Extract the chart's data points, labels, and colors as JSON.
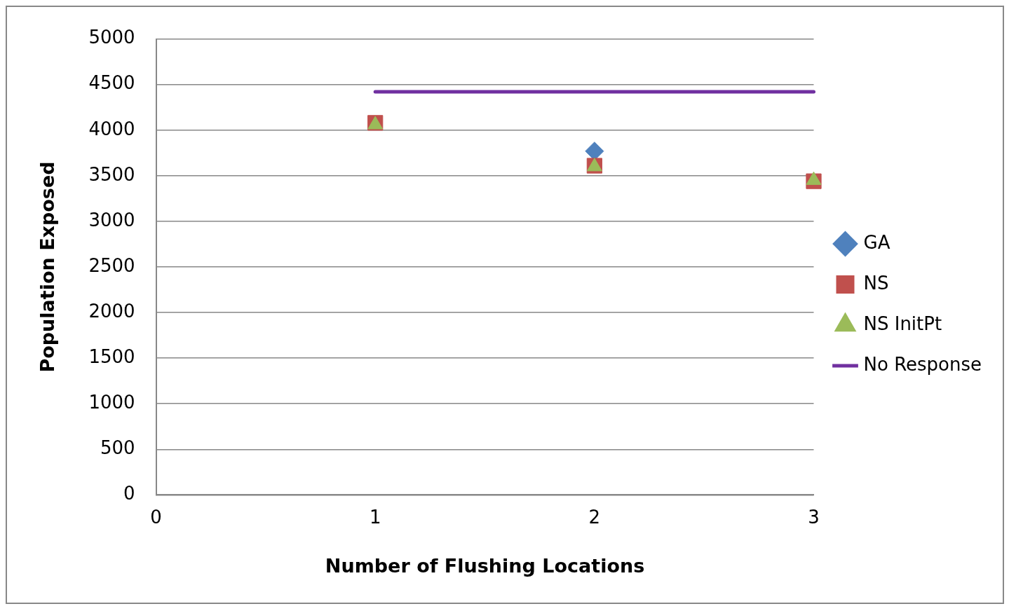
{
  "chart_data": {
    "type": "scatter",
    "xlabel": "Number of Flushing Locations",
    "ylabel": "Population Exposed",
    "xlim": [
      0,
      3
    ],
    "xticks": [
      0,
      1,
      2,
      3
    ],
    "ylim": [
      0,
      5000
    ],
    "yticks": [
      0,
      500,
      1000,
      1500,
      2000,
      2500,
      3000,
      3500,
      4000,
      4500,
      5000
    ],
    "grid": "y",
    "legend": "right",
    "series": [
      {
        "name": "GA",
        "color": "#4f81bd",
        "marker": "diamond",
        "x": [
          2
        ],
        "values": [
          3770
        ]
      },
      {
        "name": "NS",
        "color": "#c0504d",
        "marker": "square",
        "x": [
          1,
          2,
          3
        ],
        "values": [
          4080,
          3610,
          3440
        ]
      },
      {
        "name": "NS InitPt",
        "color": "#9bbb59",
        "marker": "triangle",
        "x": [
          1,
          2,
          3
        ],
        "values": [
          4060,
          3600,
          3450
        ]
      },
      {
        "name": "No Response",
        "type": "line",
        "color": "#7030a0",
        "marker": "none",
        "x": [
          1,
          3
        ],
        "values": [
          4420,
          4420
        ]
      }
    ]
  }
}
